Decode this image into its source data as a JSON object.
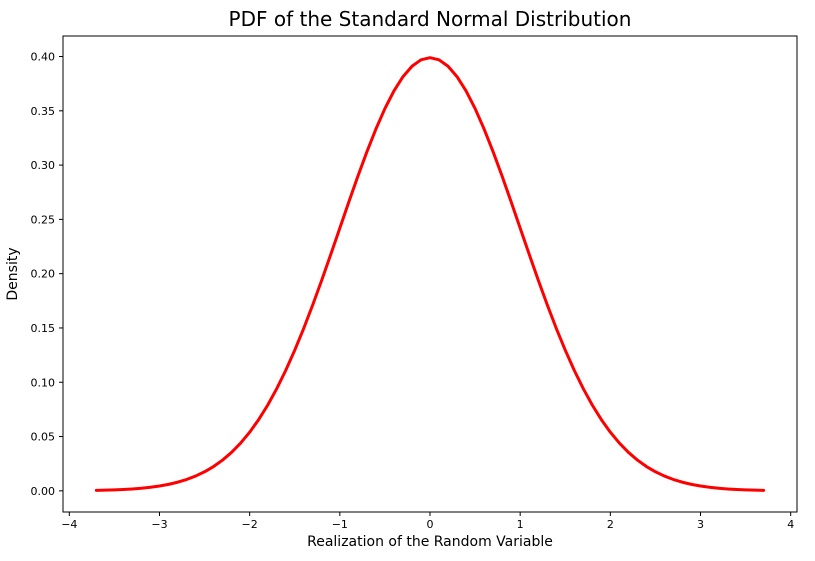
{
  "chart_data": {
    "type": "line",
    "title": "PDF of the Standard Normal Distribution",
    "xlabel": "Realization of the Random Variable",
    "ylabel": "Density",
    "xlim": [
      -4.07,
      4.07
    ],
    "ylim": [
      -0.0195,
      0.4189
    ],
    "grid": false,
    "legend": "none",
    "background_color": "#ffffff",
    "spine_color": "#000000",
    "x_ticks": [
      -4,
      -3,
      -2,
      -1,
      0,
      1,
      2,
      3,
      4
    ],
    "x_tick_labels": [
      "−4",
      "−3",
      "−2",
      "−1",
      "0",
      "1",
      "2",
      "3",
      "4"
    ],
    "y_ticks": [
      0.0,
      0.05,
      0.1,
      0.15,
      0.2,
      0.25,
      0.3,
      0.35,
      0.4
    ],
    "y_tick_labels": [
      "0.00",
      "0.05",
      "0.10",
      "0.15",
      "0.20",
      "0.25",
      "0.30",
      "0.35",
      "0.40"
    ],
    "series": [
      {
        "name": "standard-normal-pdf",
        "color": "#ff0000",
        "line_width": 3,
        "x": [
          -3.7,
          -3.6,
          -3.5,
          -3.4,
          -3.3,
          -3.2,
          -3.1,
          -3.0,
          -2.9,
          -2.8,
          -2.7,
          -2.6,
          -2.5,
          -2.4,
          -2.3,
          -2.2,
          -2.1,
          -2.0,
          -1.9,
          -1.8,
          -1.7,
          -1.6,
          -1.5,
          -1.4,
          -1.3,
          -1.2,
          -1.1,
          -1.0,
          -0.9,
          -0.8,
          -0.7,
          -0.6,
          -0.5,
          -0.4,
          -0.3,
          -0.2,
          -0.1,
          0.0,
          0.1,
          0.2,
          0.3,
          0.4,
          0.5,
          0.6,
          0.7,
          0.8,
          0.9,
          1.0,
          1.1,
          1.2,
          1.3,
          1.4,
          1.5,
          1.6,
          1.7,
          1.8,
          1.9,
          2.0,
          2.1,
          2.2,
          2.3,
          2.4,
          2.5,
          2.6,
          2.7,
          2.8,
          2.9,
          3.0,
          3.1,
          3.2,
          3.3,
          3.4,
          3.5,
          3.6,
          3.7
        ],
        "y": [
          0.00042,
          0.00061,
          0.00087,
          0.00123,
          0.00172,
          0.00238,
          0.00327,
          0.00443,
          0.00595,
          0.00792,
          0.01042,
          0.01358,
          0.01753,
          0.02239,
          0.02833,
          0.03547,
          0.04398,
          0.05399,
          0.06562,
          0.07895,
          0.09405,
          0.11092,
          0.12952,
          0.14973,
          0.17137,
          0.19419,
          0.21785,
          0.24197,
          0.26609,
          0.28969,
          0.31225,
          0.33322,
          0.35207,
          0.36827,
          0.38139,
          0.39104,
          0.39695,
          0.39894,
          0.39695,
          0.39104,
          0.38139,
          0.36827,
          0.35207,
          0.33322,
          0.31225,
          0.28969,
          0.26609,
          0.24197,
          0.21785,
          0.19419,
          0.17137,
          0.14973,
          0.12952,
          0.11092,
          0.09405,
          0.07895,
          0.06562,
          0.05399,
          0.04398,
          0.03547,
          0.02833,
          0.02239,
          0.01753,
          0.01358,
          0.01042,
          0.00792,
          0.00595,
          0.00443,
          0.00327,
          0.00238,
          0.00172,
          0.00123,
          0.00087,
          0.00061,
          0.00042
        ]
      }
    ]
  }
}
